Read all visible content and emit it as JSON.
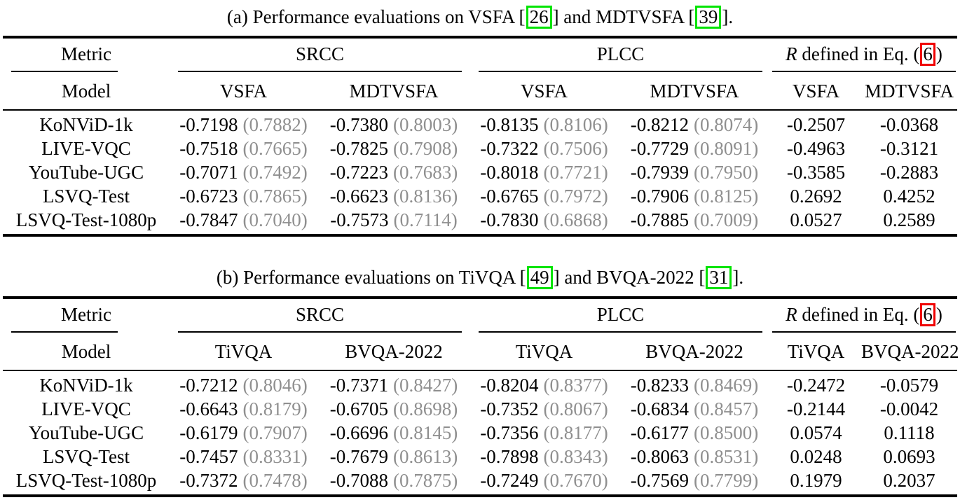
{
  "colors": {
    "green_box": "#00e400",
    "red_box": "#f00000",
    "paren_gray": "#8f8f8f"
  },
  "table_a": {
    "caption": {
      "part1": "(a) Performance evaluations on VSFA [",
      "cite1": "26",
      "part2": "] and MDTVSFA [",
      "cite2": "39",
      "part3": "]."
    },
    "header": {
      "metric": "Metric",
      "model": "Model",
      "srcc": "SRCC",
      "plcc": "PLCC",
      "r_symbol": "R",
      "r_text": " defined in Eq. (",
      "r_eq": "6",
      "r_close": ")",
      "sub": [
        "VSFA",
        "MDTVSFA",
        "VSFA",
        "MDTVSFA",
        "VSFA",
        "MDTVSFA"
      ]
    },
    "rows": [
      {
        "model": "KoNViD-1k",
        "s1": "-0.7198",
        "s1p": "(0.7882)",
        "s2": "-0.7380",
        "s2p": "(0.8003)",
        "p1": "-0.8135",
        "p1p": "(0.8106)",
        "p2": "-0.8212",
        "p2p": "(0.8074)",
        "r1": "-0.2507",
        "r2": "-0.0368"
      },
      {
        "model": "LIVE-VQC",
        "s1": "-0.7518",
        "s1p": "(0.7665)",
        "s2": "-0.7825",
        "s2p": "(0.7908)",
        "p1": "-0.7322",
        "p1p": "(0.7506)",
        "p2": "-0.7729",
        "p2p": "(0.8091)",
        "r1": "-0.4963",
        "r2": "-0.3121"
      },
      {
        "model": "YouTube-UGC",
        "s1": "-0.7071",
        "s1p": "(0.7492)",
        "s2": "-0.7223",
        "s2p": "(0.7683)",
        "p1": "-0.8018",
        "p1p": "(0.7721)",
        "p2": "-0.7939",
        "p2p": "(0.7950)",
        "r1": "-0.3585",
        "r2": "-0.2883"
      },
      {
        "model": "LSVQ-Test",
        "s1": "-0.6723",
        "s1p": "(0.7865)",
        "s2": "-0.6623",
        "s2p": "(0.8136)",
        "p1": "-0.6765",
        "p1p": "(0.7972)",
        "p2": "-0.7906",
        "p2p": "(0.8125)",
        "r1": "0.2692",
        "r2": "0.4252"
      },
      {
        "model": "LSVQ-Test-1080p",
        "s1": "-0.7847",
        "s1p": "(0.7040)",
        "s2": "-0.7573",
        "s2p": "(0.7114)",
        "p1": "-0.7830",
        "p1p": "(0.6868)",
        "p2": "-0.7885",
        "p2p": "(0.7009)",
        "r1": "0.0527",
        "r2": "0.2589"
      }
    ]
  },
  "table_b": {
    "caption": {
      "part1": "(b) Performance evaluations on TiVQA [",
      "cite1": "49",
      "part2": "] and BVQA-2022 [",
      "cite2": "31",
      "part3": "]."
    },
    "header": {
      "metric": "Metric",
      "model": "Model",
      "srcc": "SRCC",
      "plcc": "PLCC",
      "r_symbol": "R",
      "r_text": " defined in Eq. (",
      "r_eq": "6",
      "r_close": ")",
      "sub": [
        "TiVQA",
        "BVQA-2022",
        "TiVQA",
        "BVQA-2022",
        "TiVQA",
        "BVQA-2022"
      ]
    },
    "rows": [
      {
        "model": "KoNViD-1k",
        "s1": "-0.7212",
        "s1p": "(0.8046)",
        "s2": "-0.7371",
        "s2p": "(0.8427)",
        "p1": "-0.8204",
        "p1p": "(0.8377)",
        "p2": "-0.8233",
        "p2p": "(0.8469)",
        "r1": "-0.2472",
        "r2": "-0.0579"
      },
      {
        "model": "LIVE-VQC",
        "s1": "-0.6643",
        "s1p": "(0.8179)",
        "s2": "-0.6705",
        "s2p": "(0.8698)",
        "p1": "-0.7352",
        "p1p": "(0.8067)",
        "p2": "-0.6834",
        "p2p": "(0.8457)",
        "r1": "-0.2144",
        "r2": "-0.0042"
      },
      {
        "model": "YouTube-UGC",
        "s1": "-0.6179",
        "s1p": "(0.7907)",
        "s2": "-0.6696",
        "s2p": "(0.8145)",
        "p1": "-0.7356",
        "p1p": "(0.8177)",
        "p2": "-0.6177",
        "p2p": "(0.8500)",
        "r1": "0.0574",
        "r2": "0.1118"
      },
      {
        "model": "LSVQ-Test",
        "s1": "-0.7457",
        "s1p": "(0.8331)",
        "s2": "-0.7679",
        "s2p": "(0.8613)",
        "p1": "-0.7898",
        "p1p": "(0.8343)",
        "p2": "-0.8063",
        "p2p": "(0.8531)",
        "r1": "0.0248",
        "r2": "0.0693"
      },
      {
        "model": "LSVQ-Test-1080p",
        "s1": "-0.7372",
        "s1p": "(0.7478)",
        "s2": "-0.7088",
        "s2p": "(0.7875)",
        "p1": "-0.7249",
        "p1p": "(0.7670)",
        "p2": "-0.7569",
        "p2p": "(0.7799)",
        "r1": "0.1979",
        "r2": "0.2037"
      }
    ]
  }
}
